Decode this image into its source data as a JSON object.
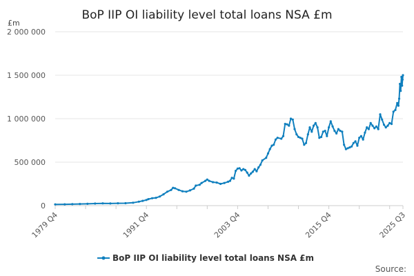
{
  "chart_data": {
    "type": "line",
    "title": "BoP IIP OI liability level total loans NSA £m",
    "unit_label": "£m",
    "source_label": "Source:",
    "ylim": [
      0,
      2000000
    ],
    "y_ticks": [
      0,
      500000,
      1000000,
      1500000,
      2000000
    ],
    "y_tick_labels": [
      "0",
      "500 000",
      "1 000 000",
      "1 500 000",
      "2 000 000"
    ],
    "x_range": [
      1979.75,
      2025.5
    ],
    "x_ticks": [
      1979.75,
      1991.75,
      2003.75,
      2015.75,
      2025.5
    ],
    "x_tick_labels": [
      "1979 Q4",
      "1991 Q4",
      "2003 Q4",
      "2015 Q4",
      "2025 Q3"
    ],
    "grid": true,
    "legend_position": "bottom",
    "color": "#0f7fbe",
    "series": [
      {
        "name": "BoP IIP OI liability level total loans NSA £m",
        "points": [
          [
            1979.75,
            14000
          ],
          [
            1981.0,
            15000
          ],
          [
            1982.0,
            17000
          ],
          [
            1983.0,
            19000
          ],
          [
            1984.0,
            21000
          ],
          [
            1985.0,
            24000
          ],
          [
            1986.0,
            26000
          ],
          [
            1987.0,
            25000
          ],
          [
            1988.0,
            27000
          ],
          [
            1989.0,
            28000
          ],
          [
            1990.0,
            33000
          ],
          [
            1990.75,
            45000
          ],
          [
            1991.25,
            55000
          ],
          [
            1991.75,
            65000
          ],
          [
            1992.0,
            75000
          ],
          [
            1992.5,
            85000
          ],
          [
            1993.0,
            90000
          ],
          [
            1993.5,
            105000
          ],
          [
            1994.0,
            130000
          ],
          [
            1994.5,
            160000
          ],
          [
            1995.0,
            180000
          ],
          [
            1995.25,
            205000
          ],
          [
            1995.5,
            200000
          ],
          [
            1996.0,
            180000
          ],
          [
            1996.5,
            165000
          ],
          [
            1997.0,
            160000
          ],
          [
            1997.5,
            175000
          ],
          [
            1998.0,
            195000
          ],
          [
            1998.25,
            230000
          ],
          [
            1998.75,
            240000
          ],
          [
            1999.0,
            260000
          ],
          [
            1999.5,
            285000
          ],
          [
            1999.75,
            300000
          ],
          [
            2000.0,
            285000
          ],
          [
            2000.5,
            270000
          ],
          [
            2001.0,
            265000
          ],
          [
            2001.5,
            250000
          ],
          [
            2002.0,
            260000
          ],
          [
            2002.5,
            275000
          ],
          [
            2002.75,
            285000
          ],
          [
            2003.0,
            320000
          ],
          [
            2003.25,
            310000
          ],
          [
            2003.5,
            400000
          ],
          [
            2003.75,
            425000
          ],
          [
            2004.0,
            430000
          ],
          [
            2004.25,
            405000
          ],
          [
            2004.5,
            420000
          ],
          [
            2004.75,
            410000
          ],
          [
            2005.0,
            380000
          ],
          [
            2005.25,
            345000
          ],
          [
            2005.5,
            370000
          ],
          [
            2005.75,
            390000
          ],
          [
            2006.0,
            420000
          ],
          [
            2006.25,
            395000
          ],
          [
            2006.5,
            440000
          ],
          [
            2006.75,
            470000
          ],
          [
            2007.0,
            520000
          ],
          [
            2007.5,
            550000
          ],
          [
            2007.75,
            600000
          ],
          [
            2008.0,
            650000
          ],
          [
            2008.25,
            690000
          ],
          [
            2008.5,
            700000
          ],
          [
            2008.75,
            760000
          ],
          [
            2009.0,
            780000
          ],
          [
            2009.5,
            770000
          ],
          [
            2009.75,
            800000
          ],
          [
            2010.0,
            940000
          ],
          [
            2010.25,
            935000
          ],
          [
            2010.5,
            920000
          ],
          [
            2010.75,
            1000000
          ],
          [
            2011.0,
            990000
          ],
          [
            2011.25,
            880000
          ],
          [
            2011.5,
            820000
          ],
          [
            2011.75,
            790000
          ],
          [
            2012.0,
            780000
          ],
          [
            2012.25,
            770000
          ],
          [
            2012.5,
            700000
          ],
          [
            2012.75,
            720000
          ],
          [
            2013.0,
            820000
          ],
          [
            2013.25,
            900000
          ],
          [
            2013.5,
            850000
          ],
          [
            2013.75,
            920000
          ],
          [
            2014.0,
            950000
          ],
          [
            2014.25,
            900000
          ],
          [
            2014.5,
            780000
          ],
          [
            2014.75,
            790000
          ],
          [
            2015.0,
            850000
          ],
          [
            2015.25,
            860000
          ],
          [
            2015.5,
            800000
          ],
          [
            2015.75,
            900000
          ],
          [
            2016.0,
            970000
          ],
          [
            2016.25,
            910000
          ],
          [
            2016.5,
            860000
          ],
          [
            2016.75,
            830000
          ],
          [
            2017.0,
            880000
          ],
          [
            2017.25,
            860000
          ],
          [
            2017.5,
            850000
          ],
          [
            2017.75,
            700000
          ],
          [
            2018.0,
            650000
          ],
          [
            2018.25,
            660000
          ],
          [
            2018.5,
            670000
          ],
          [
            2018.75,
            680000
          ],
          [
            2019.0,
            720000
          ],
          [
            2019.25,
            740000
          ],
          [
            2019.5,
            690000
          ],
          [
            2019.75,
            780000
          ],
          [
            2020.0,
            800000
          ],
          [
            2020.25,
            760000
          ],
          [
            2020.5,
            840000
          ],
          [
            2020.75,
            900000
          ],
          [
            2021.0,
            880000
          ],
          [
            2021.25,
            950000
          ],
          [
            2021.5,
            920000
          ],
          [
            2021.75,
            890000
          ],
          [
            2022.0,
            910000
          ],
          [
            2022.25,
            880000
          ],
          [
            2022.5,
            1050000
          ],
          [
            2022.75,
            990000
          ],
          [
            2023.0,
            930000
          ],
          [
            2023.25,
            900000
          ],
          [
            2023.5,
            920000
          ],
          [
            2023.75,
            950000
          ],
          [
            2024.0,
            940000
          ],
          [
            2024.25,
            1080000
          ],
          [
            2024.5,
            1100000
          ],
          [
            2024.75,
            1180000
          ],
          [
            2024.9,
            1150000
          ],
          [
            2025.0,
            1230000
          ],
          [
            2025.1,
            1400000
          ],
          [
            2025.2,
            1320000
          ],
          [
            2025.3,
            1480000
          ],
          [
            2025.38,
            1380000
          ],
          [
            2025.45,
            1450000
          ],
          [
            2025.5,
            1500000
          ]
        ]
      }
    ]
  }
}
